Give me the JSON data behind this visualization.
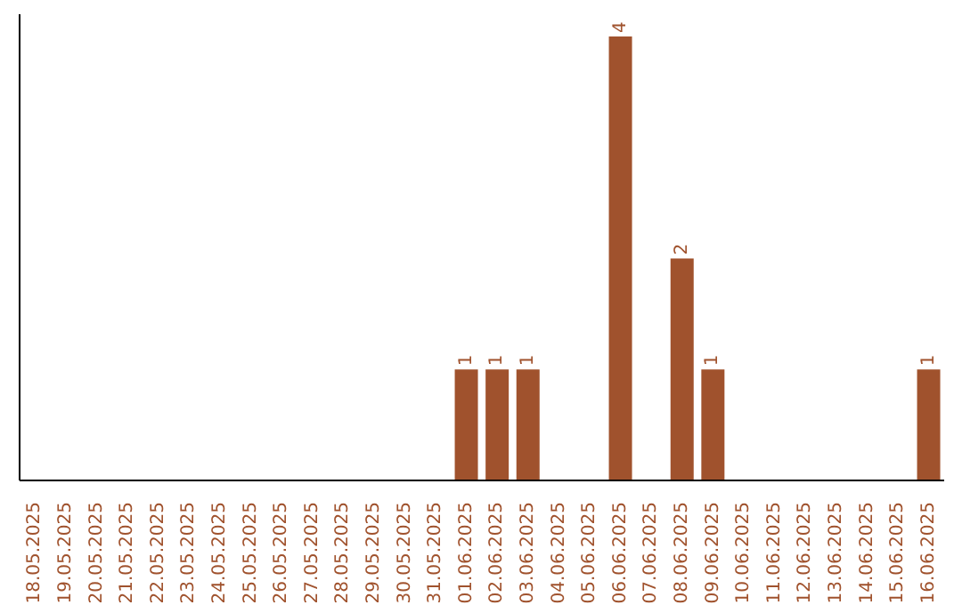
{
  "chart_data": {
    "type": "bar",
    "categories": [
      "18.05.2025",
      "19.05.2025",
      "20.05.2025",
      "21.05.2025",
      "22.05.2025",
      "23.05.2025",
      "24.05.2025",
      "25.05.2025",
      "26.05.2025",
      "27.05.2025",
      "28.05.2025",
      "29.05.2025",
      "30.05.2025",
      "31.05.2025",
      "01.06.2025",
      "02.06.2025",
      "03.06.2025",
      "04.06.2025",
      "05.06.2025",
      "06.06.2025",
      "07.06.2025",
      "08.06.2025",
      "09.06.2025",
      "10.06.2025",
      "11.06.2025",
      "12.06.2025",
      "13.06.2025",
      "14.06.2025",
      "15.06.2025",
      "16.06.2025"
    ],
    "values": [
      null,
      null,
      null,
      null,
      null,
      null,
      null,
      null,
      null,
      null,
      null,
      null,
      null,
      null,
      1,
      1,
      1,
      null,
      null,
      4,
      null,
      2,
      1,
      null,
      null,
      null,
      null,
      null,
      null,
      1
    ],
    "color": "#a0522d",
    "data_labels": true,
    "grid": false,
    "legend": false
  }
}
